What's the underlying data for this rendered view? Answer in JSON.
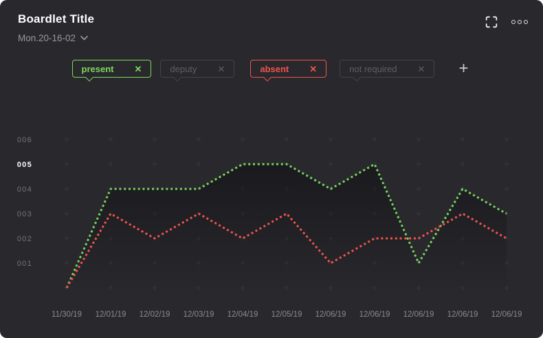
{
  "header": {
    "title": "Boardlet Title",
    "date_selector": "Mon.20-16-02"
  },
  "toolbar_icons": {
    "expand": "expand-icon",
    "menu": "ellipsis-menu-icon"
  },
  "filters": {
    "remove_glyph": "✕",
    "add_glyph": "+",
    "chips": [
      {
        "label": "present",
        "state": "active",
        "color": "#7bd95c"
      },
      {
        "label": "deputy",
        "state": "inactive",
        "color": "#43434a"
      },
      {
        "label": "absent",
        "state": "active",
        "color": "#f2544d"
      },
      {
        "label": "not required",
        "state": "inactive",
        "color": "#43434a"
      }
    ]
  },
  "chart_data": {
    "type": "line",
    "title": "",
    "xlabel": "",
    "ylabel": "",
    "x": [
      "11/30/19",
      "12/01/19",
      "12/02/19",
      "12/03/19",
      "12/04/19",
      "12/05/19",
      "12/06/19",
      "12/06/19",
      "12/06/19",
      "12/06/19",
      "12/06/19"
    ],
    "series": [
      {
        "name": "present",
        "color": "#78d45f",
        "line_style": "dotted",
        "area_fill": true,
        "values": [
          0,
          4,
          4,
          4,
          5,
          5,
          4,
          5,
          1,
          4,
          3
        ]
      },
      {
        "name": "absent",
        "color": "#f2544d",
        "line_style": "dotted",
        "area_fill": false,
        "values": [
          0,
          3,
          2,
          3,
          2,
          3,
          1,
          2,
          2,
          3,
          2
        ]
      }
    ],
    "y_ticks": [
      "001",
      "002",
      "003",
      "004",
      "005",
      "006"
    ],
    "highlighted_y_tick": "005",
    "ylim": [
      0,
      6
    ],
    "grid": "plus-markers",
    "legend_position": "none"
  },
  "colors": {
    "card_bg": "#28282d",
    "title_text": "#ffffff",
    "subtitle_text": "#98989e",
    "y_tick_text": "#74747b",
    "x_tick_text": "#8b8b92",
    "grid_marker": "#43434b",
    "present_line": "#78d45f",
    "absent_line": "#f2544d",
    "inactive_chip_text": "#5f5f66"
  }
}
